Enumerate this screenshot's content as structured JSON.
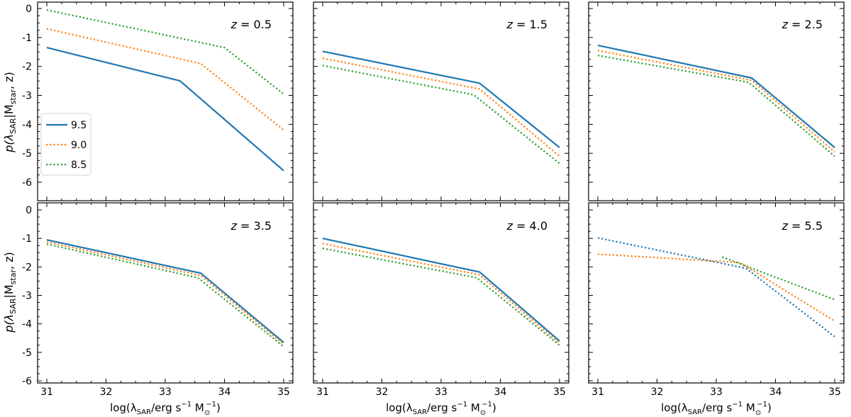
{
  "figure": {
    "ylabel_main": "p(λ",
    "ylabel_sub1": "SAR",
    "ylabel_mid": "|M",
    "ylabel_sub2": "star",
    "ylabel_end": ", z)",
    "xlabel_main": "log(λ",
    "xlabel_sub": "SAR",
    "xlabel_mid": "/erg s",
    "xlabel_sup1": "−1",
    "xlabel_M": " M",
    "xlabel_sub2": "⊙",
    "xlabel_sup2": "−1",
    "xlabel_end": ")",
    "z_prefix": "z",
    "z_eq": " = "
  },
  "chart_data": [
    {
      "type": "line",
      "redshift": "0.5",
      "xlim": [
        30.9,
        35.1
      ],
      "ylim": [
        -6,
        0.2
      ],
      "xticks": [
        31,
        32,
        33,
        34,
        35
      ],
      "yticks": [
        0,
        -1,
        -2,
        -3,
        -4,
        -5,
        -6
      ],
      "legend": "left",
      "series": [
        {
          "name": "9.5",
          "color": "#1f77b4",
          "style": "solid",
          "x": [
            31,
            33.25,
            35
          ],
          "y": [
            -1.35,
            -2.5,
            -5.6
          ]
        },
        {
          "name": "9.0",
          "color": "#ff7f0e",
          "style": "dotted",
          "x": [
            31,
            33.6,
            35
          ],
          "y": [
            -0.7,
            -1.9,
            -4.2
          ]
        },
        {
          "name": "8.5",
          "color": "#2ca02c",
          "style": "dotted",
          "x": [
            31,
            34.0,
            35
          ],
          "y": [
            -0.05,
            -1.35,
            -2.95
          ]
        }
      ]
    },
    {
      "type": "line",
      "redshift": "1.5",
      "xlim": [
        30.9,
        35.1
      ],
      "ylim": [
        -6,
        0.2
      ],
      "xticks": [
        31,
        32,
        33,
        34,
        35
      ],
      "yticks": [
        0,
        -1,
        -2,
        -3,
        -4,
        -5,
        -6
      ],
      "series": [
        {
          "name": "9.5",
          "color": "#1f77b4",
          "style": "solid",
          "x": [
            31,
            33.65,
            35
          ],
          "y": [
            -1.48,
            -2.58,
            -4.8
          ]
        },
        {
          "name": "9.0",
          "color": "#ff7f0e",
          "style": "dotted",
          "x": [
            31,
            33.65,
            35
          ],
          "y": [
            -1.72,
            -2.78,
            -5.1
          ]
        },
        {
          "name": "8.5",
          "color": "#2ca02c",
          "style": "dotted",
          "x": [
            31,
            33.55,
            35
          ],
          "y": [
            -1.97,
            -2.98,
            -5.35
          ]
        }
      ]
    },
    {
      "type": "line",
      "redshift": "2.5",
      "xlim": [
        30.9,
        35.1
      ],
      "ylim": [
        -6,
        0.2
      ],
      "xticks": [
        31,
        32,
        33,
        34,
        35
      ],
      "yticks": [
        0,
        -1,
        -2,
        -3,
        -4,
        -5,
        -6
      ],
      "series": [
        {
          "name": "9.5",
          "color": "#1f77b4",
          "style": "solid",
          "x": [
            31,
            33.6,
            35
          ],
          "y": [
            -1.27,
            -2.4,
            -4.8
          ]
        },
        {
          "name": "9.0",
          "color": "#ff7f0e",
          "style": "dotted",
          "x": [
            31,
            33.6,
            35
          ],
          "y": [
            -1.45,
            -2.48,
            -4.95
          ]
        },
        {
          "name": "8.5",
          "color": "#2ca02c",
          "style": "dotted",
          "x": [
            31,
            33.55,
            35
          ],
          "y": [
            -1.62,
            -2.55,
            -5.1
          ]
        }
      ]
    },
    {
      "type": "line",
      "redshift": "3.5",
      "xlim": [
        30.9,
        35.1
      ],
      "ylim": [
        -6,
        0.2
      ],
      "xticks": [
        31,
        32,
        33,
        34,
        35
      ],
      "yticks": [
        0,
        -1,
        -2,
        -3,
        -4,
        -5,
        -6
      ],
      "series": [
        {
          "name": "9.5",
          "color": "#1f77b4",
          "style": "solid",
          "x": [
            31,
            33.6,
            35
          ],
          "y": [
            -1.05,
            -2.22,
            -4.65
          ]
        },
        {
          "name": "9.0",
          "color": "#ff7f0e",
          "style": "dotted",
          "x": [
            31,
            33.6,
            35
          ],
          "y": [
            -1.12,
            -2.3,
            -4.72
          ]
        },
        {
          "name": "8.5",
          "color": "#2ca02c",
          "style": "dotted",
          "x": [
            31,
            33.55,
            35
          ],
          "y": [
            -1.2,
            -2.38,
            -4.8
          ]
        }
      ]
    },
    {
      "type": "line",
      "redshift": "4.0",
      "xlim": [
        30.9,
        35.1
      ],
      "ylim": [
        -6,
        0.2
      ],
      "xticks": [
        31,
        32,
        33,
        34,
        35
      ],
      "yticks": [
        0,
        -1,
        -2,
        -3,
        -4,
        -5,
        -6
      ],
      "series": [
        {
          "name": "9.5",
          "color": "#1f77b4",
          "style": "solid",
          "x": [
            31,
            33.65,
            35
          ],
          "y": [
            -1.0,
            -2.18,
            -4.6
          ]
        },
        {
          "name": "9.0",
          "color": "#ff7f0e",
          "style": "dotted",
          "x": [
            31,
            33.65,
            35
          ],
          "y": [
            -1.18,
            -2.28,
            -4.68
          ]
        },
        {
          "name": "8.5",
          "color": "#2ca02c",
          "style": "dotted",
          "x": [
            31,
            33.6,
            35
          ],
          "y": [
            -1.35,
            -2.38,
            -4.75
          ]
        }
      ]
    },
    {
      "type": "line",
      "redshift": "5.5",
      "xlim": [
        30.9,
        35.1
      ],
      "ylim": [
        -6,
        0.2
      ],
      "xticks": [
        31,
        32,
        33,
        34,
        35
      ],
      "yticks": [
        0,
        -1,
        -2,
        -3,
        -4,
        -5,
        -6
      ],
      "series": [
        {
          "name": "9.5",
          "color": "#1f77b4",
          "style": "dotted",
          "x": [
            31,
            33.5,
            35
          ],
          "y": [
            -0.98,
            -2.05,
            -4.45
          ]
        },
        {
          "name": "9.0",
          "color": "#ff7f0e",
          "style": "dotted",
          "x": [
            31,
            33.4,
            35
          ],
          "y": [
            -1.55,
            -1.85,
            -3.9
          ]
        },
        {
          "name": "8.5",
          "color": "#2ca02c",
          "style": "dotted",
          "x": [
            33.1,
            33.6,
            35
          ],
          "y": [
            -1.65,
            -2.05,
            -3.15
          ]
        }
      ]
    }
  ]
}
